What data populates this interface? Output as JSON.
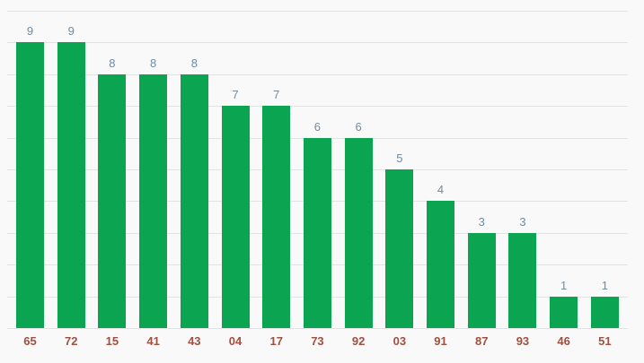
{
  "chart_data": {
    "type": "bar",
    "categories": [
      "65",
      "72",
      "15",
      "41",
      "43",
      "04",
      "17",
      "73",
      "92",
      "03",
      "91",
      "87",
      "93",
      "46",
      "51"
    ],
    "values": [
      9,
      9,
      8,
      8,
      8,
      7,
      7,
      6,
      6,
      5,
      4,
      3,
      3,
      1,
      1
    ],
    "title": "",
    "xlabel": "",
    "ylabel": "",
    "ylim": [
      0,
      10
    ],
    "grid": true,
    "gridline_count": 11,
    "legend": "none",
    "colors": {
      "bar": "#0ba551",
      "value_label": "#6d8ca6",
      "category_label": "#a0503e",
      "gridline": "#e3e3e3",
      "background": "#f9f9f9"
    }
  }
}
